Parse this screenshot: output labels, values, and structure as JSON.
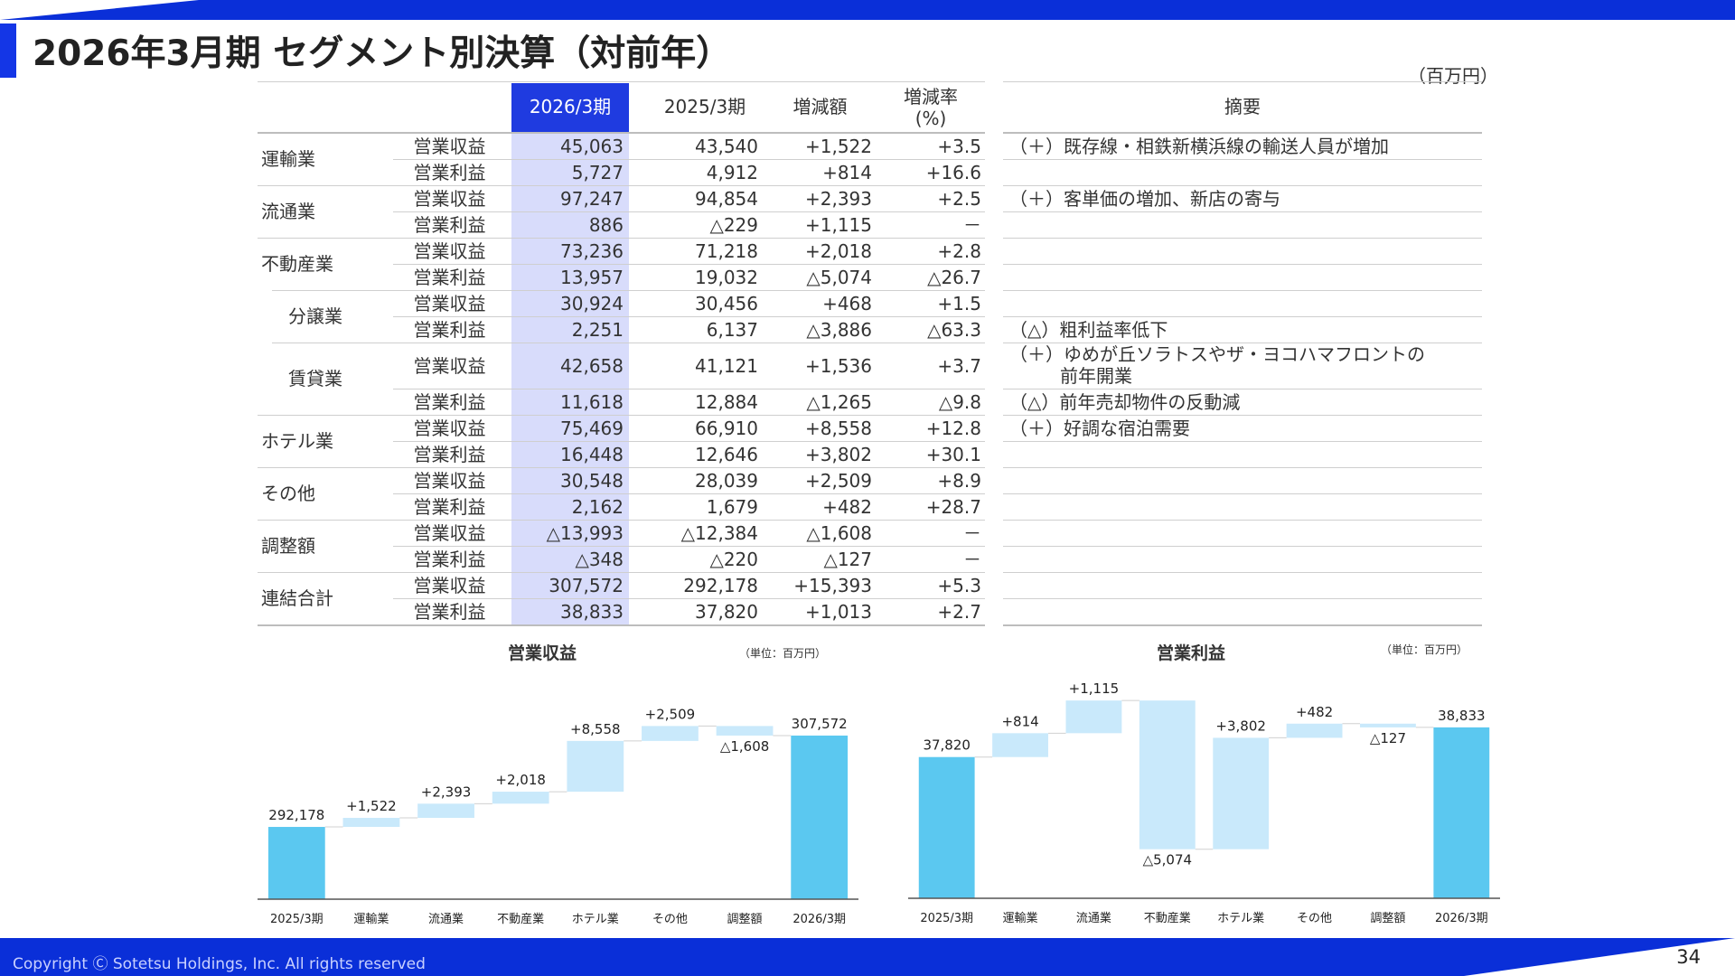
{
  "header": {
    "title": "2026年3月期  セグメント別決算（対前年）",
    "unit": "（百万円）"
  },
  "table": {
    "headers": {
      "current": "2026/3期",
      "prior": "2025/3期",
      "change": "増減額",
      "rate": "増減率\n(%)",
      "summary": "摘要"
    },
    "rows": [
      {
        "segment": "運輸業",
        "item": "営業収益",
        "current": "45,063",
        "prior": "43,540",
        "change": "+1,522",
        "rate": "+3.5",
        "note": "（＋）既存線・相鉄新横浜線の輸送人員が増加"
      },
      {
        "segment": "",
        "item": "営業利益",
        "current": "5,727",
        "prior": "4,912",
        "change": "+814",
        "rate": "+16.6",
        "note": ""
      },
      {
        "segment": "流通業",
        "item": "営業収益",
        "current": "97,247",
        "prior": "94,854",
        "change": "+2,393",
        "rate": "+2.5",
        "note": "（＋）客単価の増加、新店の寄与"
      },
      {
        "segment": "",
        "item": "営業利益",
        "current": "886",
        "prior": "△229",
        "change": "+1,115",
        "rate": "－",
        "note": ""
      },
      {
        "segment": "不動産業",
        "item": "営業収益",
        "current": "73,236",
        "prior": "71,218",
        "change": "+2,018",
        "rate": "+2.8",
        "note": ""
      },
      {
        "segment": "",
        "item": "営業利益",
        "current": "13,957",
        "prior": "19,032",
        "change": "△5,074",
        "rate": "△26.7",
        "note": ""
      },
      {
        "segment": "分譲業",
        "item": "営業収益",
        "current": "30,924",
        "prior": "30,456",
        "change": "+468",
        "rate": "+1.5",
        "note": ""
      },
      {
        "segment": "",
        "item": "営業利益",
        "current": "2,251",
        "prior": "6,137",
        "change": "△3,886",
        "rate": "△63.3",
        "note": "（△）粗利益率低下"
      },
      {
        "segment": "賃貸業",
        "item": "営業収益",
        "current": "42,658",
        "prior": "41,121",
        "change": "+1,536",
        "rate": "+3.7",
        "note": "（＋）ゆめが丘ソラトスやザ・ヨコハマフロントの",
        "note2": "前年開業"
      },
      {
        "segment": "",
        "item": "営業利益",
        "current": "11,618",
        "prior": "12,884",
        "change": "△1,265",
        "rate": "△9.8",
        "note": "（△）前年売却物件の反動減"
      },
      {
        "segment": "ホテル業",
        "item": "営業収益",
        "current": "75,469",
        "prior": "66,910",
        "change": "+8,558",
        "rate": "+12.8",
        "note": "（＋）好調な宿泊需要"
      },
      {
        "segment": "",
        "item": "営業利益",
        "current": "16,448",
        "prior": "12,646",
        "change": "+3,802",
        "rate": "+30.1",
        "note": ""
      },
      {
        "segment": "その他",
        "item": "営業収益",
        "current": "30,548",
        "prior": "28,039",
        "change": "+2,509",
        "rate": "+8.9",
        "note": ""
      },
      {
        "segment": "",
        "item": "営業利益",
        "current": "2,162",
        "prior": "1,679",
        "change": "+482",
        "rate": "+28.7",
        "note": ""
      },
      {
        "segment": "調整額",
        "item": "営業収益",
        "current": "△13,993",
        "prior": "△12,384",
        "change": "△1,608",
        "rate": "－",
        "note": ""
      },
      {
        "segment": "",
        "item": "営業利益",
        "current": "△348",
        "prior": "△220",
        "change": "△127",
        "rate": "－",
        "note": ""
      },
      {
        "segment": "連結合計",
        "item": "営業収益",
        "current": "307,572",
        "prior": "292,178",
        "change": "+15,393",
        "rate": "+5.3",
        "note": ""
      },
      {
        "segment": "",
        "item": "営業利益",
        "current": "38,833",
        "prior": "37,820",
        "change": "+1,013",
        "rate": "+2.7",
        "note": ""
      }
    ]
  },
  "chart_data": [
    {
      "type": "bar",
      "subtype": "waterfall",
      "title": "営業収益",
      "unit": "（単位：百万円）",
      "categories": [
        "2025/3期",
        "運輸業",
        "流通業",
        "不動産業",
        "ホテル業",
        "その他",
        "調整額",
        "2026/3期"
      ],
      "values": [
        292178,
        1522,
        2393,
        2018,
        8558,
        2509,
        -1608,
        307572
      ],
      "labels": [
        "292,178",
        "+1,522",
        "+2,393",
        "+2,018",
        "+8,558",
        "+2,509",
        "△1,608",
        "307,572"
      ],
      "colors": {
        "total": "#5bc8f0",
        "step": "#c9e9fb"
      }
    },
    {
      "type": "bar",
      "subtype": "waterfall",
      "title": "営業利益",
      "unit": "（単位：百万円）",
      "categories": [
        "2025/3期",
        "運輸業",
        "流通業",
        "不動産業",
        "ホテル業",
        "その他",
        "調整額",
        "2026/3期"
      ],
      "values": [
        37820,
        814,
        1115,
        -5074,
        3802,
        482,
        -127,
        38833
      ],
      "labels": [
        "37,820",
        "+814",
        "+1,115",
        "△5,074",
        "+3,802",
        "+482",
        "△127",
        "38,833"
      ],
      "colors": {
        "total": "#5bc8f0",
        "step": "#c9e9fb"
      }
    }
  ],
  "footer": {
    "copyright": "Copyright Ⓒ Sotetsu Holdings, Inc. All rights reserved",
    "page": "34"
  }
}
